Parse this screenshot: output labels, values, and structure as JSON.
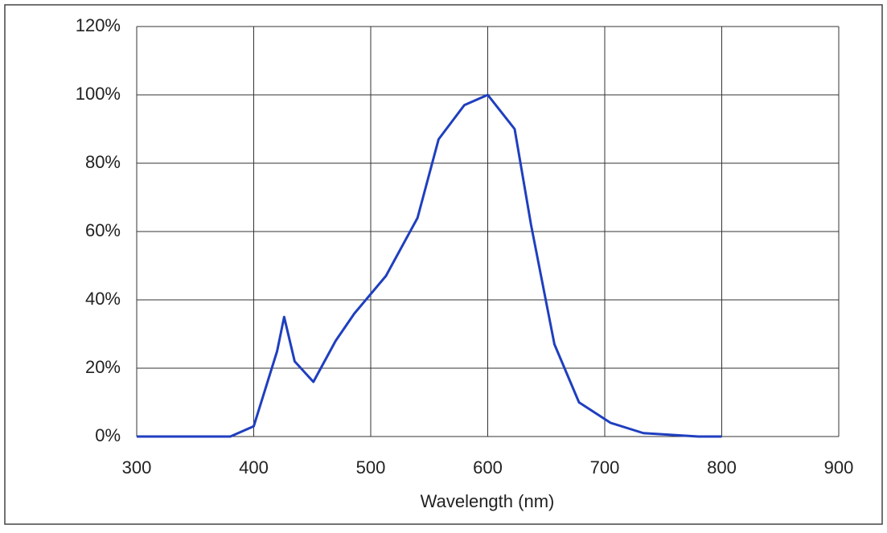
{
  "chart_data": {
    "type": "line",
    "x_label": "Wavelength (nm)",
    "x": [
      300,
      380,
      400,
      420,
      426,
      435,
      451,
      470,
      486,
      513,
      540,
      558,
      580,
      600,
      623,
      637,
      657,
      678,
      705,
      733,
      780,
      800
    ],
    "series": [
      {
        "color": "#1f3fbf",
        "values": [
          0,
          0,
          3,
          25,
          35,
          22,
          16,
          28,
          36,
          47,
          64,
          87,
          97,
          100,
          90,
          62,
          27,
          10,
          4,
          1,
          0,
          0
        ]
      }
    ],
    "xlim": [
      300,
      900
    ],
    "xticks": [
      300,
      400,
      500,
      600,
      700,
      800,
      900
    ],
    "ylim": [
      0,
      120
    ],
    "yticks": [
      {
        "value": 0,
        "label": "0%"
      },
      {
        "value": 20,
        "label": "20%"
      },
      {
        "value": 40,
        "label": "40%"
      },
      {
        "value": 60,
        "label": "60%"
      },
      {
        "value": 80,
        "label": "80%"
      },
      {
        "value": 100,
        "label": "100%"
      },
      {
        "value": 120,
        "label": "120%"
      }
    ],
    "grid": true
  }
}
